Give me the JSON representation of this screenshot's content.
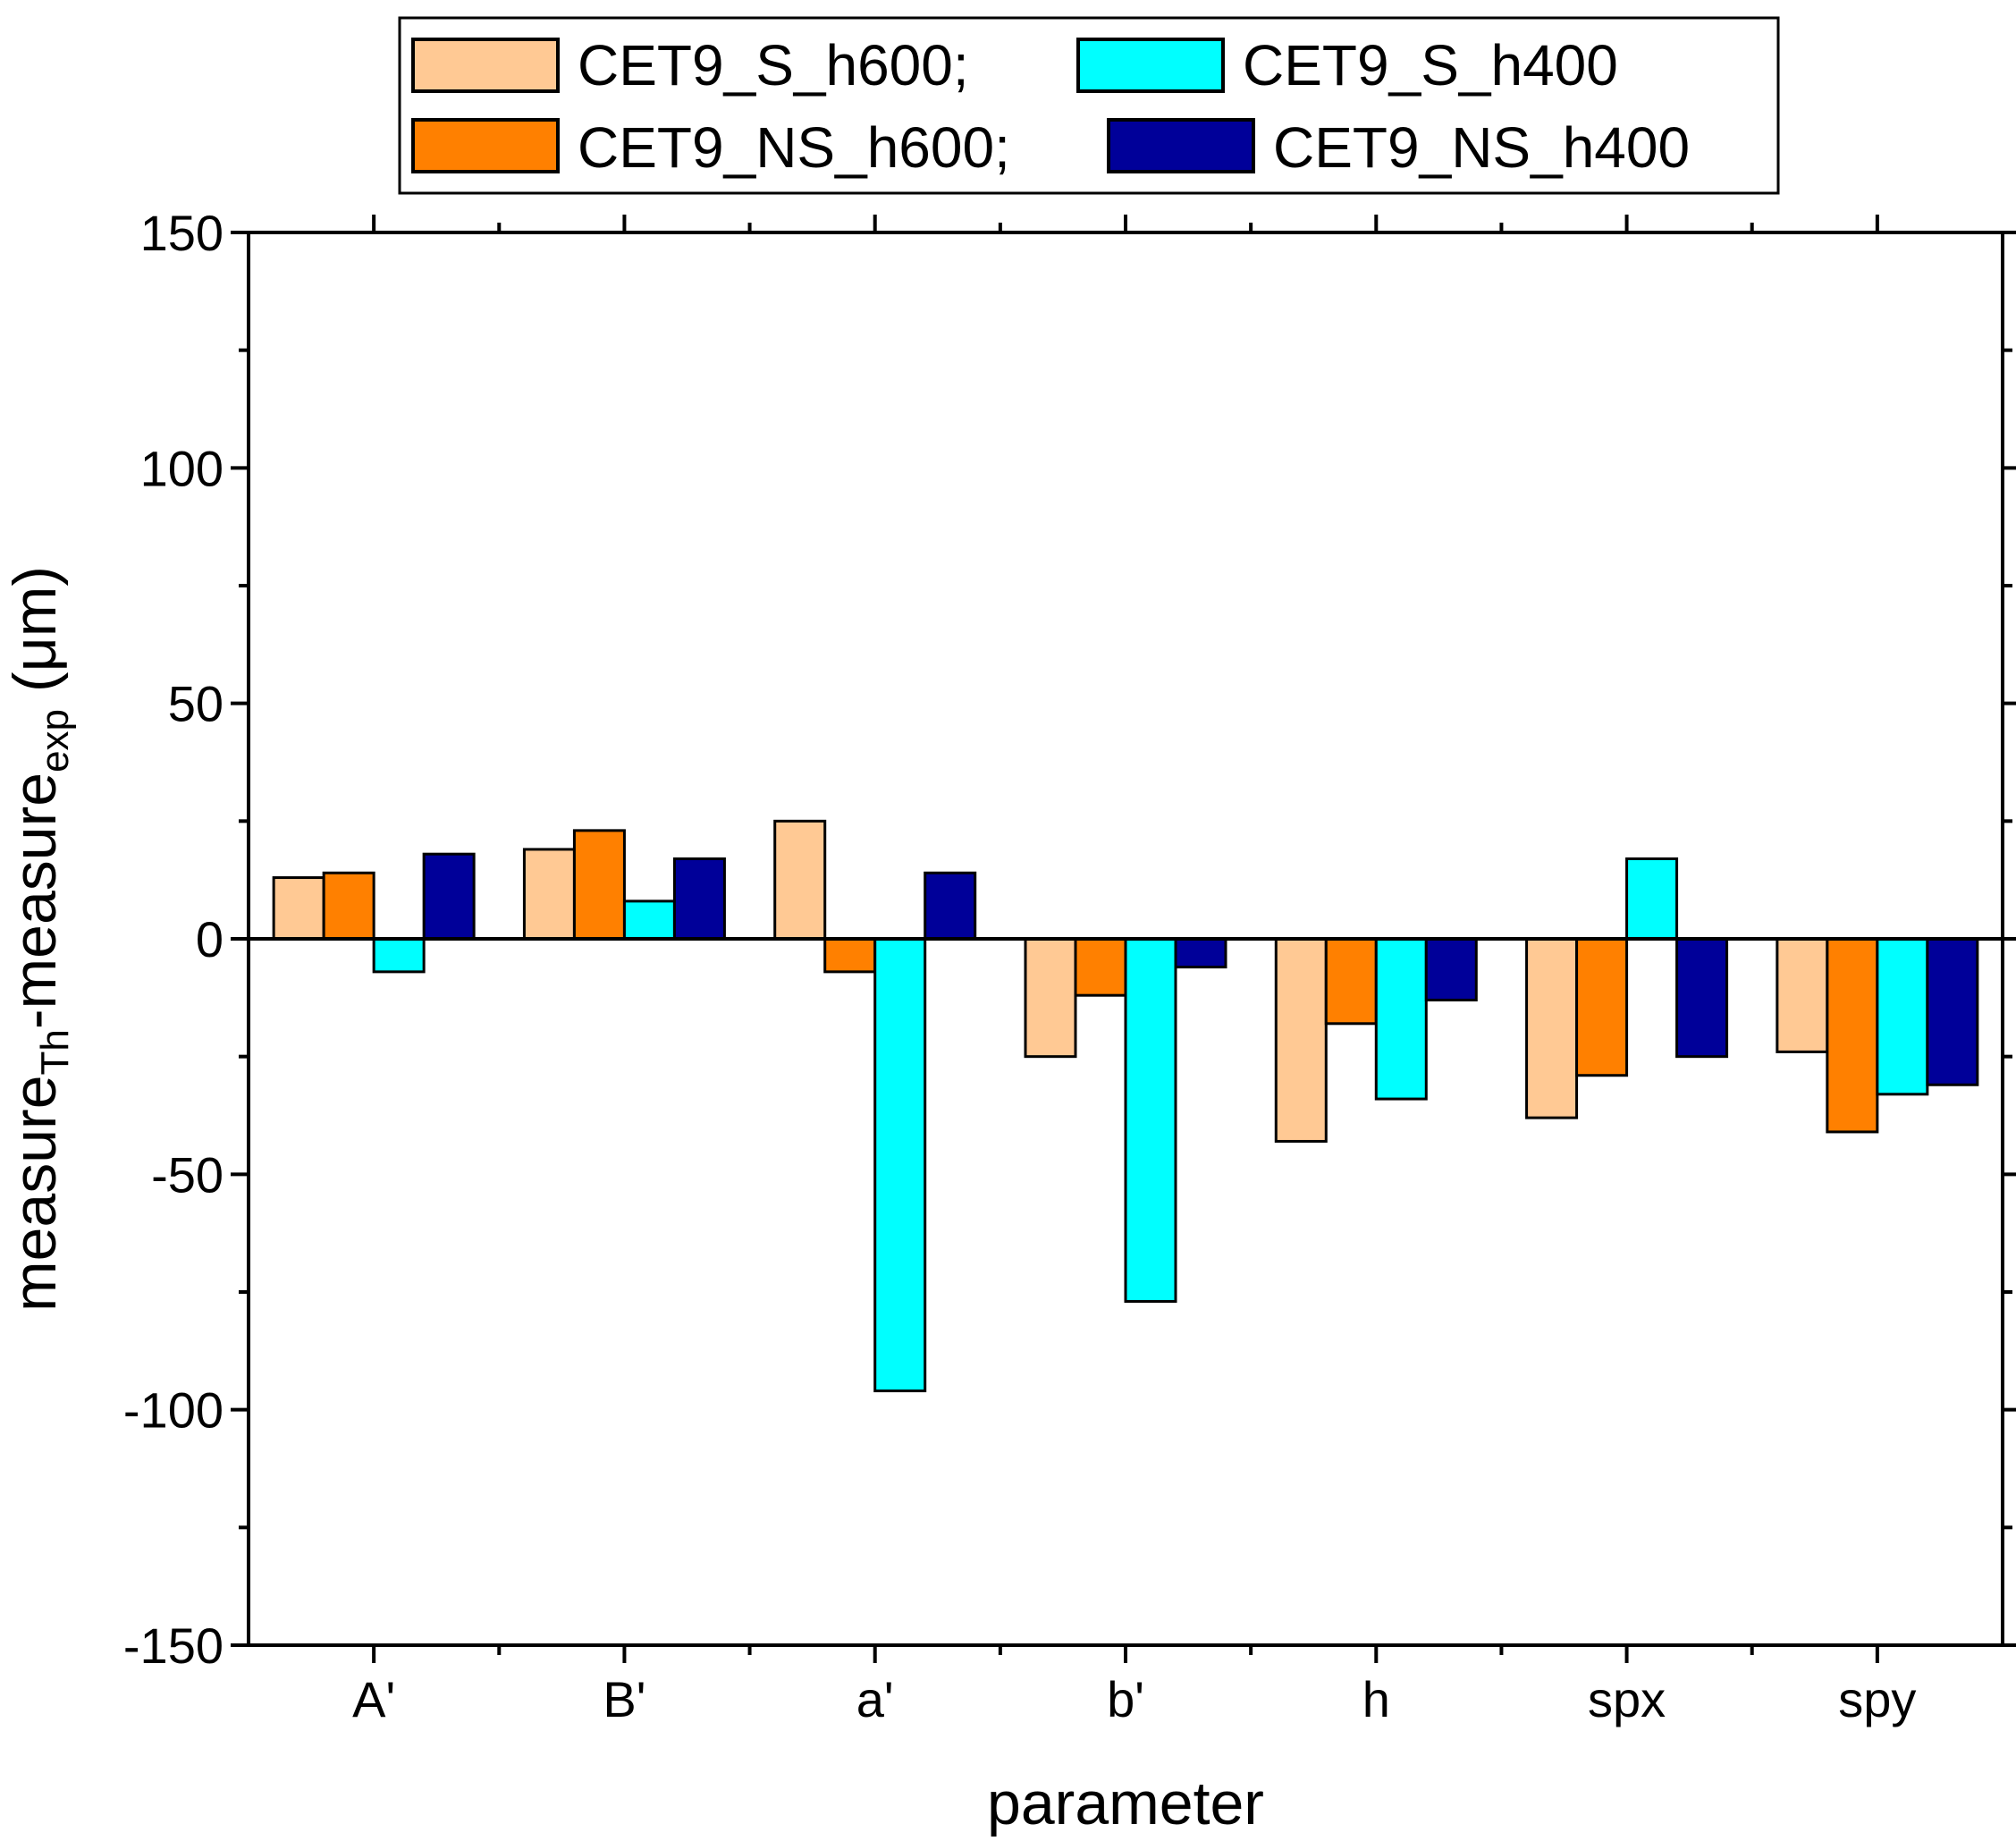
{
  "chart_data": {
    "type": "bar",
    "title": "",
    "xlabel": "parameter",
    "ylabel": {
      "base1": "measure",
      "sub1": "Th",
      "mid": "-measure",
      "sub2": "exp",
      "unit": " (μm)"
    },
    "ylim": [
      -150,
      150
    ],
    "yticks": [
      -150,
      -100,
      -50,
      0,
      50,
      100,
      150
    ],
    "ytick_labels": [
      "-150",
      "-100",
      "-50",
      "0",
      "50",
      "100",
      "150"
    ],
    "categories": [
      "A'",
      "B'",
      "a'",
      "b'",
      "h",
      "spx",
      "spy"
    ],
    "series": [
      {
        "name": "CET9_S_h600;",
        "color": "#FFC994",
        "values": [
          13,
          19,
          25,
          -25,
          -43,
          -38,
          -24
        ]
      },
      {
        "name": "CET9_NS_h600;",
        "color": "#FF8000",
        "values": [
          14,
          23,
          -7,
          -12,
          -18,
          -29,
          -41
        ]
      },
      {
        "name": "CET9_S_h400",
        "color": "#00FFFF",
        "values": [
          -7,
          8,
          -96,
          -77,
          -34,
          17,
          -33
        ]
      },
      {
        "name": "CET9_NS_h400",
        "color": "#000099",
        "values": [
          18,
          17,
          14,
          -6,
          -13,
          -25,
          -31
        ]
      }
    ],
    "legend_position": "top",
    "grid": false
  }
}
